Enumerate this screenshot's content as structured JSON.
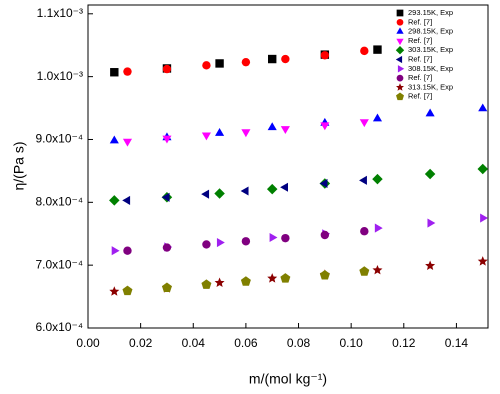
{
  "chart_data": {
    "type": "scatter",
    "x_label": "m/(mol kg⁻¹)",
    "y_label": "η/(Pa s)",
    "xlim": [
      0,
      0.152
    ],
    "ylim": [
      0.0006,
      0.001114
    ],
    "xticks": [
      {
        "value": 0,
        "label": "0.00"
      },
      0.02,
      0.04,
      0.06,
      0.08,
      {
        "value": 0.1,
        "label": "0.10"
      },
      0.12,
      0.14
    ],
    "yticks": [
      {
        "value": 0.0006,
        "label": "6.0x10⁻⁴"
      },
      {
        "value": 0.0007,
        "label": "7.0x10⁻⁴"
      },
      {
        "value": 0.0008,
        "label": "8.0x10⁻⁴"
      },
      {
        "value": 0.0009,
        "label": "9.0x10⁻⁴"
      },
      {
        "value": 0.001,
        "label": "1.0x10⁻³"
      },
      {
        "value": 0.0011,
        "label": "1.1x10⁻³"
      }
    ],
    "legend": "upper right",
    "series": [
      {
        "name": "293.15K, Exp",
        "color": "#000000",
        "marker": "square",
        "x": [
          0.01,
          0.03,
          0.05,
          0.07,
          0.09,
          0.11
        ],
        "values": [
          0.001007,
          0.001013,
          0.001021,
          0.001028,
          0.001035,
          0.001043
        ]
      },
      {
        "name": "Ref. [7]",
        "color": "#ff0000",
        "marker": "circle",
        "x": [
          0.015,
          0.03,
          0.045,
          0.06,
          0.075,
          0.09,
          0.105
        ],
        "values": [
          0.001008,
          0.001012,
          0.001018,
          0.001023,
          0.001028,
          0.001034,
          0.001041
        ]
      },
      {
        "name": "298.15K, Exp",
        "color": "#0000ff",
        "marker": "triangle-up",
        "x": [
          0.01,
          0.03,
          0.05,
          0.07,
          0.09,
          0.11,
          0.13,
          0.15
        ],
        "values": [
          0.000898,
          0.000903,
          0.00091,
          0.000919,
          0.000926,
          0.000933,
          0.000941,
          0.000949
        ]
      },
      {
        "name": "Ref. [7]",
        "color": "#ff00ff",
        "marker": "triangle-down",
        "x": [
          0.015,
          0.03,
          0.045,
          0.06,
          0.075,
          0.09,
          0.105
        ],
        "values": [
          0.000897,
          0.000902,
          0.000907,
          0.000912,
          0.000917,
          0.000923,
          0.000928
        ]
      },
      {
        "name": "303.15K, Exp",
        "color": "#008000",
        "marker": "diamond",
        "x": [
          0.01,
          0.03,
          0.05,
          0.07,
          0.09,
          0.11,
          0.13,
          0.15
        ],
        "values": [
          0.000803,
          0.000808,
          0.000814,
          0.000821,
          0.00083,
          0.000837,
          0.000845,
          0.000853
        ]
      },
      {
        "name": "Ref. [7]",
        "color": "#000080",
        "marker": "triangle-left",
        "x": [
          0.015,
          0.03,
          0.045,
          0.06,
          0.075,
          0.09,
          0.105
        ],
        "values": [
          0.000803,
          0.000808,
          0.000813,
          0.000818,
          0.000824,
          0.00083,
          0.000835
        ]
      },
      {
        "name": "308.15K, Exp",
        "color": "#a020f0",
        "marker": "triangle-right",
        "x": [
          0.01,
          0.03,
          0.05,
          0.07,
          0.09,
          0.11,
          0.13,
          0.15
        ],
        "values": [
          0.000723,
          0.000729,
          0.000736,
          0.000744,
          0.00075,
          0.000759,
          0.000767,
          0.000775
        ]
      },
      {
        "name": "Ref. [7]",
        "color": "#800080",
        "marker": "circle",
        "x": [
          0.015,
          0.03,
          0.045,
          0.06,
          0.075,
          0.09,
          0.105
        ],
        "values": [
          0.000723,
          0.000728,
          0.000733,
          0.000738,
          0.000743,
          0.000748,
          0.000754
        ]
      },
      {
        "name": "313.15K, Exp",
        "color": "#8b0000",
        "marker": "star",
        "x": [
          0.01,
          0.03,
          0.05,
          0.07,
          0.09,
          0.11,
          0.13,
          0.15
        ],
        "values": [
          0.000658,
          0.000663,
          0.000672,
          0.000679,
          0.000685,
          0.000692,
          0.000699,
          0.000706
        ]
      },
      {
        "name": "Ref. [7]",
        "color": "#808000",
        "marker": "pentagon",
        "x": [
          0.015,
          0.03,
          0.045,
          0.06,
          0.075,
          0.09,
          0.105
        ],
        "values": [
          0.000659,
          0.000664,
          0.000669,
          0.000674,
          0.000679,
          0.000684,
          0.00069
        ]
      }
    ]
  }
}
